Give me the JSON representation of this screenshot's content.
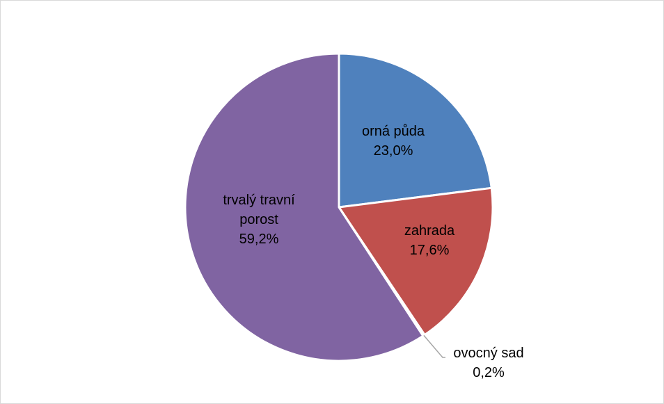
{
  "chart_data": {
    "type": "pie",
    "start_angle_deg": 0,
    "direction": "clockwise",
    "slices": [
      {
        "label_lines": [
          "orná půda"
        ],
        "value_label": "23,0%",
        "value": 23.0,
        "color": "#4f81bd"
      },
      {
        "label_lines": [
          "zahrada"
        ],
        "value_label": "17,6%",
        "value": 17.6,
        "color": "#c0504d"
      },
      {
        "label_lines": [
          "ovocný sad"
        ],
        "value_label": "0,2%",
        "value": 0.2,
        "color": "#9bbb59",
        "leader_line": true
      },
      {
        "label_lines": [
          "trvalý travní",
          "porost"
        ],
        "value_label": "59,2%",
        "value": 59.2,
        "color": "#8064a2"
      }
    ]
  }
}
